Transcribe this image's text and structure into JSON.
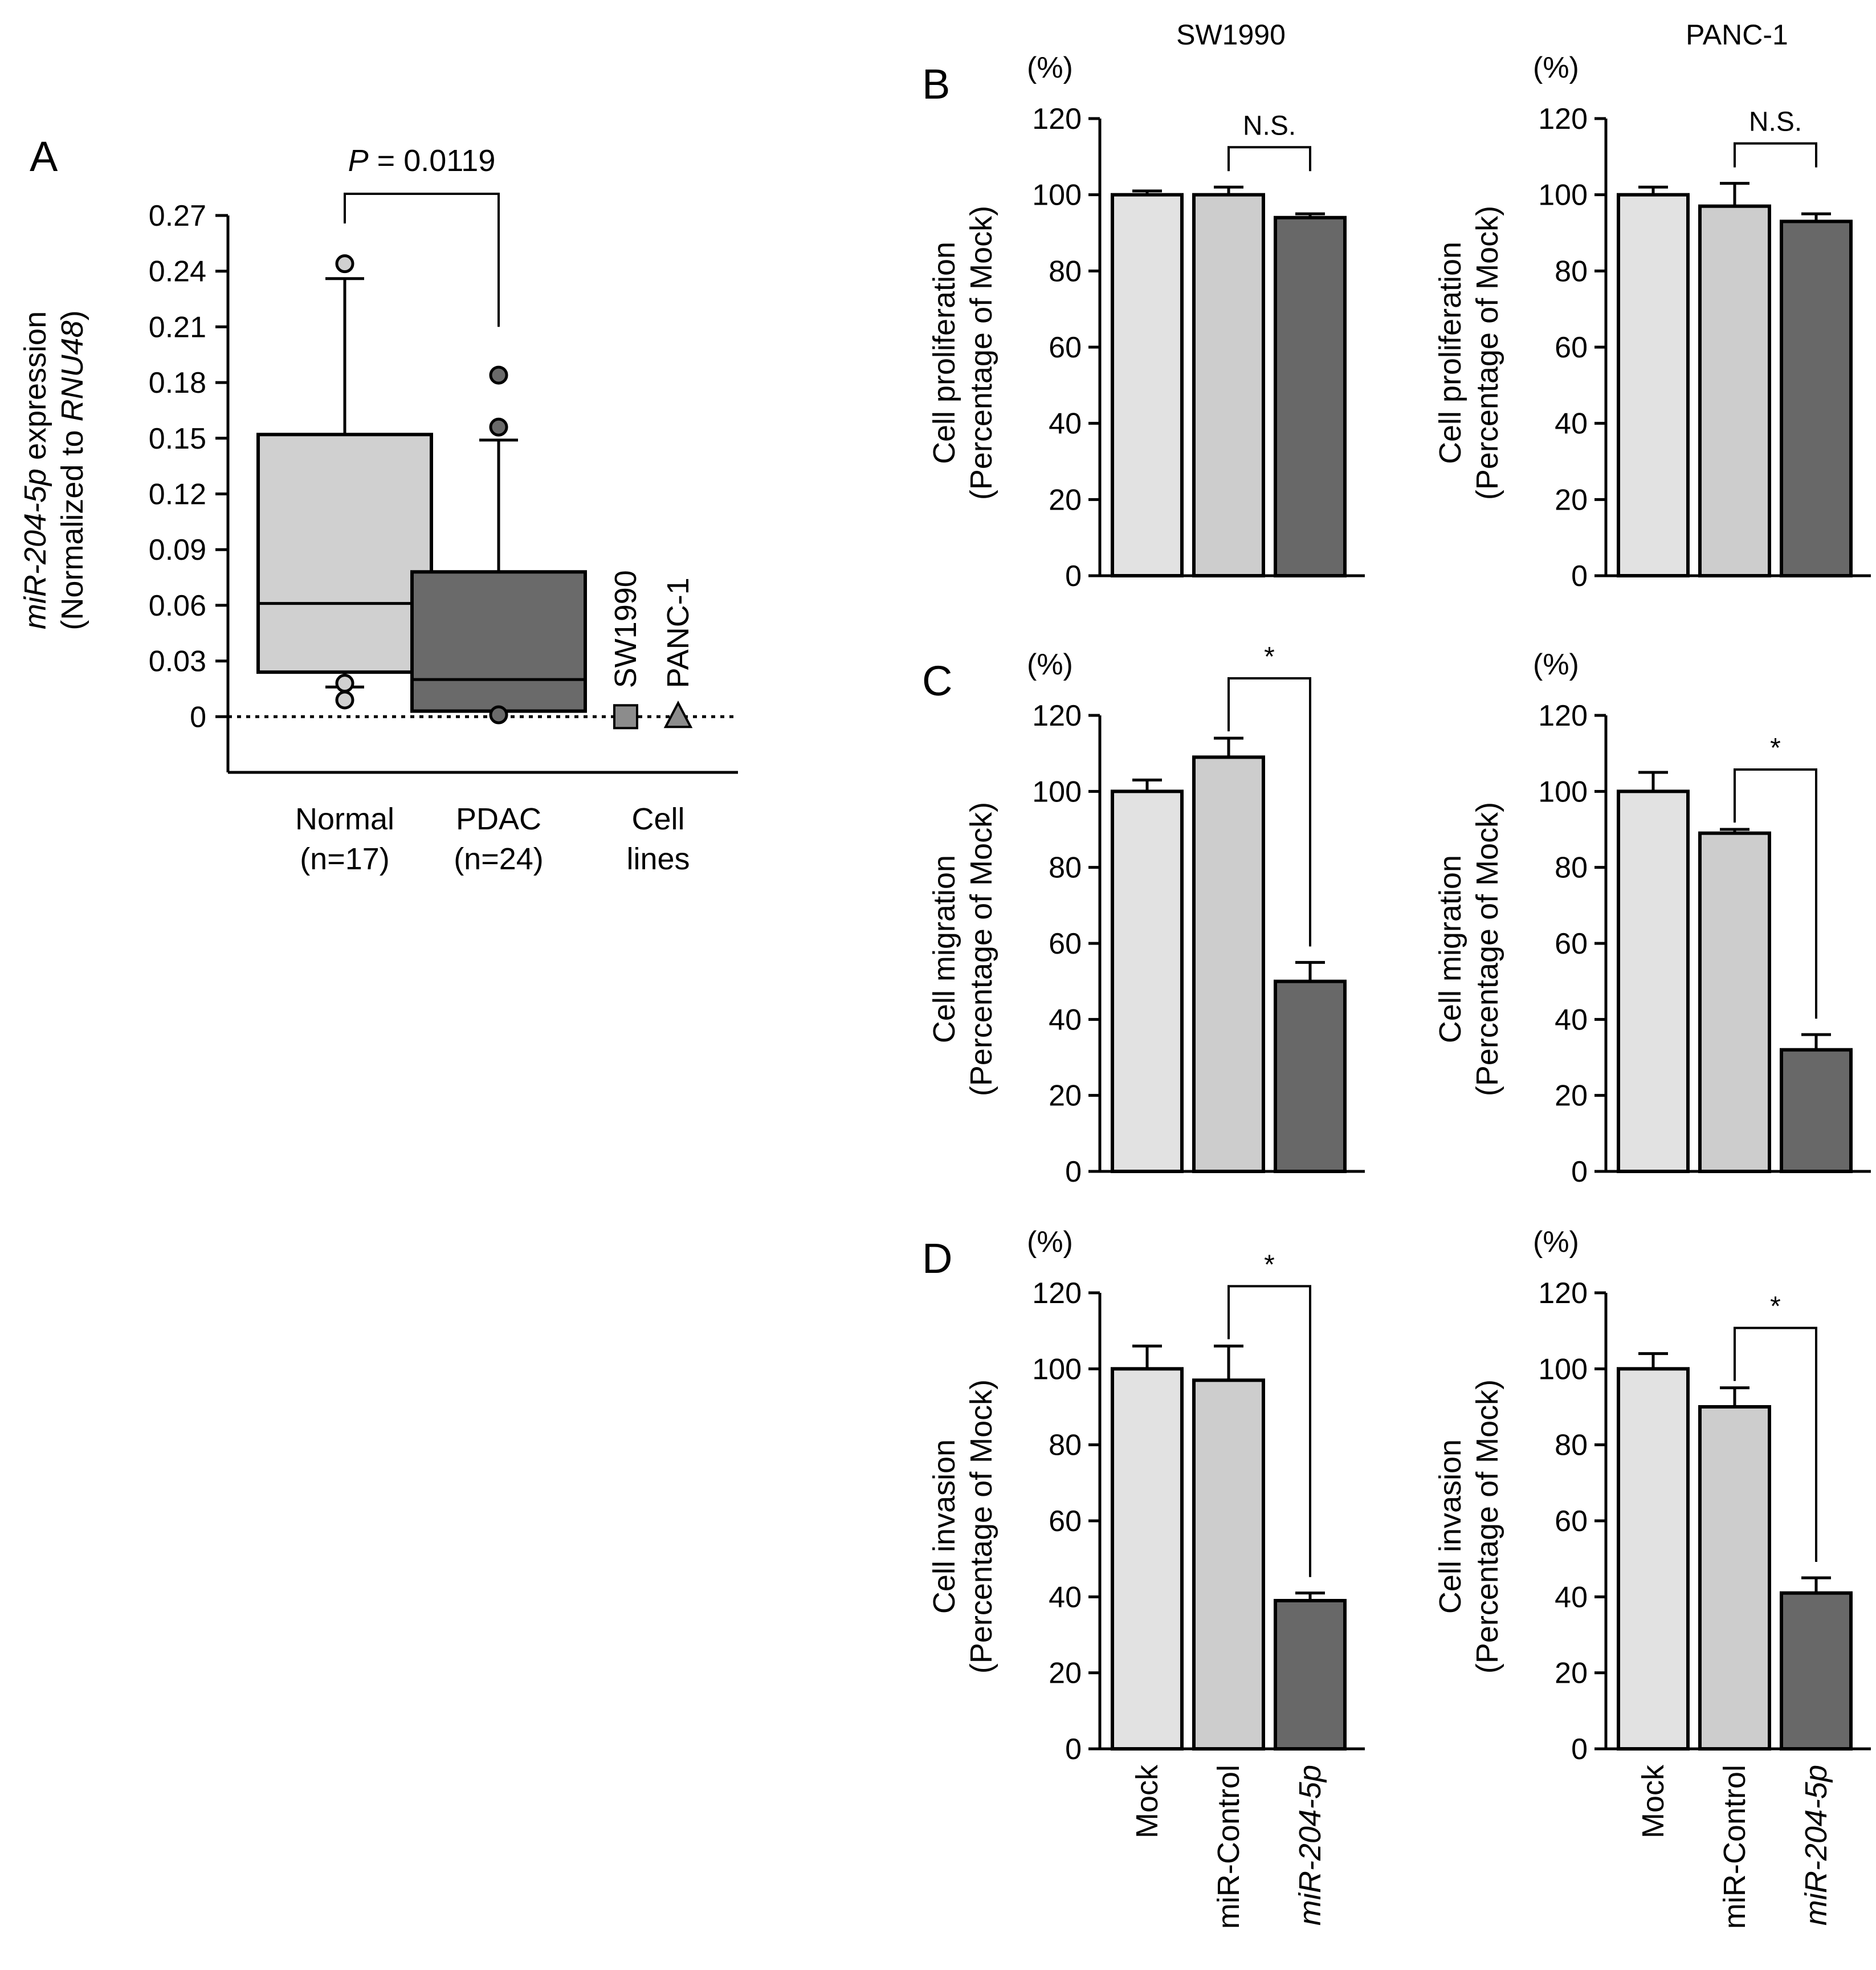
{
  "chart_data": [
    {
      "id": "A",
      "type": "box",
      "panel_label": "A",
      "ylabel_italic": "miR-204-5p",
      "ylabel_rest": " expression",
      "ylabel2_prefix": "(Normalized to ",
      "ylabel2_italic": "RNU48",
      "ylabel2_suffix": ")",
      "yticks": [
        "0",
        "0.03",
        "0.06",
        "0.09",
        "0.12",
        "0.15",
        "0.18",
        "0.21",
        "0.24",
        "0.27"
      ],
      "ylim": [
        -0.03,
        0.27
      ],
      "pvalue_label": "P",
      "pvalue_text": " = 0.0119",
      "groups": [
        {
          "name": "Normal",
          "n_label": "(n=17)",
          "q1": 0.024,
          "median": 0.061,
          "q3": 0.152,
          "whisker_low": 0.016,
          "whisker_high": 0.236,
          "outliers": [
            0.244,
            0.018,
            0.009
          ],
          "color": "#d0d0d0"
        },
        {
          "name": "PDAC",
          "n_label": "(n=24)",
          "q1": 0.003,
          "median": 0.02,
          "q3": 0.078,
          "whisker_low": 0.003,
          "whisker_high": 0.149,
          "outliers": [
            0.184,
            0.156,
            0.001
          ],
          "color": "#6a6a6a"
        }
      ],
      "cell_lines_label1": "Cell",
      "cell_lines_label2": "lines",
      "cell_lines": [
        {
          "name": "SW1990",
          "value": 0.0,
          "marker": "square",
          "color": "#8c8c8c"
        },
        {
          "name": "PANC-1",
          "value": 0.0,
          "marker": "triangle",
          "color": "#8c8c8c"
        }
      ]
    },
    {
      "id": "B-SW1990",
      "type": "bar",
      "panel_label": "B",
      "column_title": "SW1990",
      "unit_label": "(%)",
      "ylabel1": "Cell proliferation",
      "ylabel2": "(Percentage of Mock)",
      "yticks": [
        "0",
        "20",
        "40",
        "60",
        "80",
        "100",
        "120"
      ],
      "ylim": [
        0,
        120
      ],
      "categories": [
        "Mock",
        "miR-Control",
        "miR-204-5p"
      ],
      "values": [
        100,
        100,
        94
      ],
      "errors": [
        1,
        2,
        1
      ],
      "colors": [
        "#e2e2e2",
        "#cdcdcd",
        "#686868"
      ],
      "significance": "N.S."
    },
    {
      "id": "B-PANC-1",
      "type": "bar",
      "panel_label": "",
      "column_title": "PANC-1",
      "unit_label": "(%)",
      "ylabel1": "Cell proliferation",
      "ylabel2": "(Percentage of Mock)",
      "yticks": [
        "0",
        "20",
        "40",
        "60",
        "80",
        "100",
        "120"
      ],
      "ylim": [
        0,
        120
      ],
      "categories": [
        "Mock",
        "miR-Control",
        "miR-204-5p"
      ],
      "values": [
        100,
        97,
        93
      ],
      "errors": [
        2,
        6,
        2
      ],
      "colors": [
        "#e2e2e2",
        "#cdcdcd",
        "#686868"
      ],
      "significance": "N.S."
    },
    {
      "id": "C-SW1990",
      "type": "bar",
      "panel_label": "C",
      "unit_label": "(%)",
      "ylabel1": "Cell migration",
      "ylabel2": "(Percentage of Mock)",
      "yticks": [
        "0",
        "20",
        "40",
        "60",
        "80",
        "100",
        "120"
      ],
      "ylim": [
        0,
        120
      ],
      "categories": [
        "Mock",
        "miR-Control",
        "miR-204-5p"
      ],
      "values": [
        100,
        109,
        50
      ],
      "errors": [
        3,
        5,
        5
      ],
      "colors": [
        "#e2e2e2",
        "#cdcdcd",
        "#686868"
      ],
      "significance": "*"
    },
    {
      "id": "C-PANC-1",
      "type": "bar",
      "panel_label": "",
      "unit_label": "(%)",
      "ylabel1": "Cell migration",
      "ylabel2": "(Percentage of Mock)",
      "yticks": [
        "0",
        "20",
        "40",
        "60",
        "80",
        "100",
        "120"
      ],
      "ylim": [
        0,
        120
      ],
      "categories": [
        "Mock",
        "miR-Control",
        "miR-204-5p"
      ],
      "values": [
        100,
        89,
        32
      ],
      "errors": [
        5,
        1,
        4
      ],
      "colors": [
        "#e2e2e2",
        "#cdcdcd",
        "#686868"
      ],
      "significance": "*"
    },
    {
      "id": "D-SW1990",
      "type": "bar",
      "panel_label": "D",
      "unit_label": "(%)",
      "ylabel1": "Cell invasion",
      "ylabel2": "(Percentage of Mock)",
      "yticks": [
        "0",
        "20",
        "40",
        "60",
        "80",
        "100",
        "120"
      ],
      "ylim": [
        0,
        120
      ],
      "categories": [
        "Mock",
        "miR-Control",
        "miR-204-5p"
      ],
      "values": [
        100,
        97,
        39
      ],
      "errors": [
        6,
        9,
        2
      ],
      "colors": [
        "#e2e2e2",
        "#cdcdcd",
        "#686868"
      ],
      "significance": "*"
    },
    {
      "id": "D-PANC-1",
      "type": "bar",
      "panel_label": "",
      "unit_label": "(%)",
      "ylabel1": "Cell invasion",
      "ylabel2": "(Percentage of Mock)",
      "yticks": [
        "0",
        "20",
        "40",
        "60",
        "80",
        "100",
        "120"
      ],
      "ylim": [
        0,
        120
      ],
      "categories": [
        "Mock",
        "miR-Control",
        "miR-204-5p"
      ],
      "values": [
        100,
        90,
        41
      ],
      "errors": [
        4,
        5,
        4
      ],
      "colors": [
        "#e2e2e2",
        "#cdcdcd",
        "#686868"
      ],
      "significance": "*"
    }
  ]
}
